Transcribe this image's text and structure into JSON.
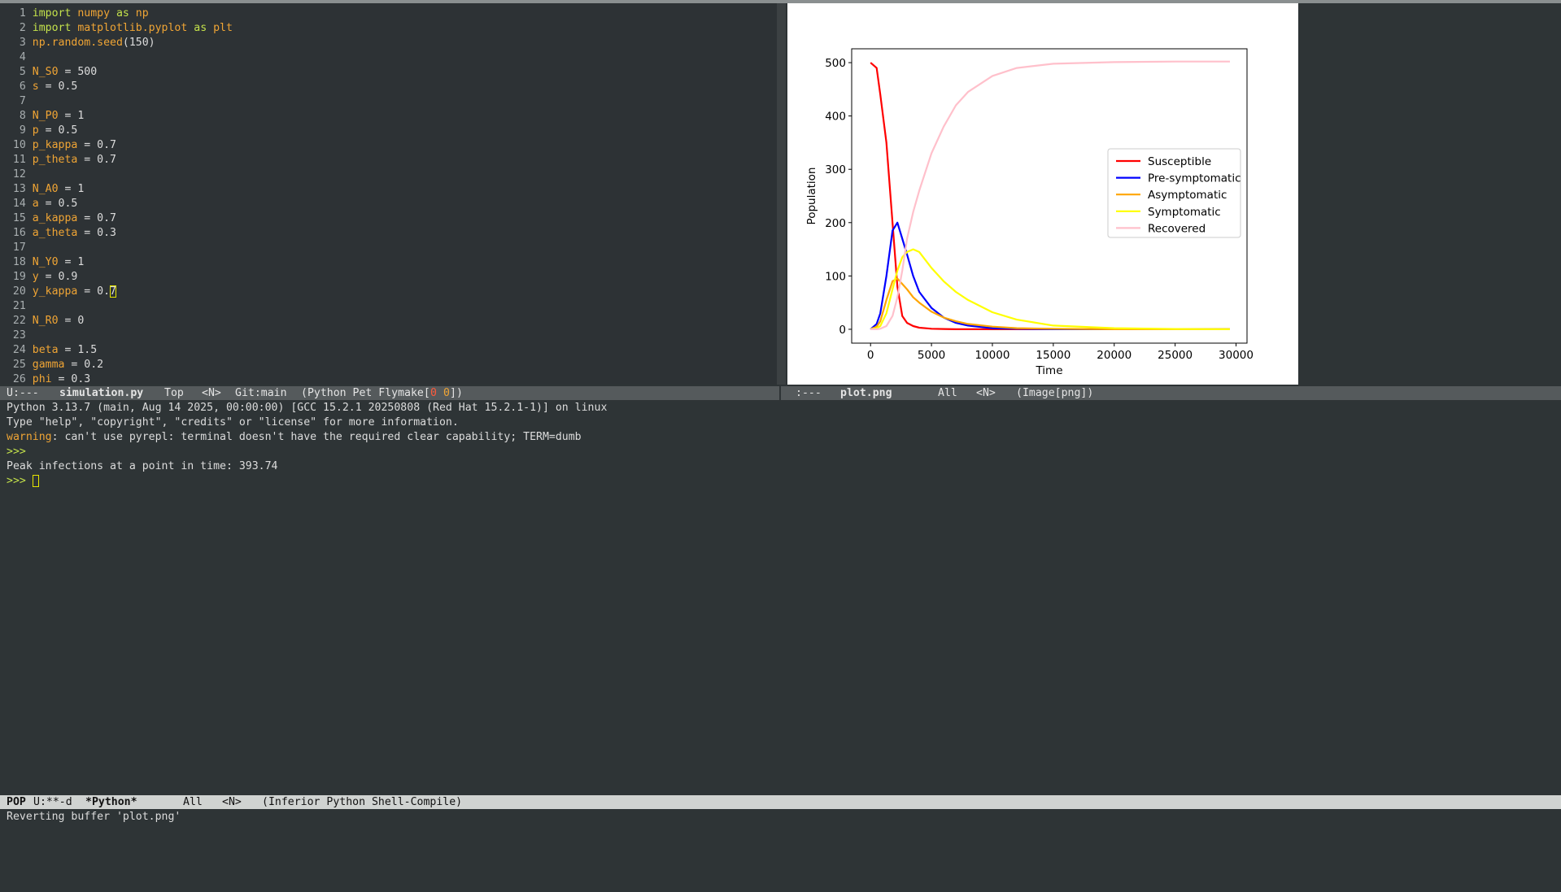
{
  "editor": {
    "lines": [
      {
        "number": "1",
        "tokens": [
          {
            "text": "import",
            "color": "#c4e24b"
          },
          {
            "text": " numpy",
            "color": "#f0a535"
          },
          {
            "text": " as",
            "color": "#c4e24b"
          },
          {
            "text": " np",
            "color": "#f0a535"
          }
        ]
      },
      {
        "number": "2",
        "tokens": [
          {
            "text": "import",
            "color": "#c4e24b"
          },
          {
            "text": " matplotlib.pyplot",
            "color": "#f0a535"
          },
          {
            "text": " as",
            "color": "#c4e24b"
          },
          {
            "text": " plt",
            "color": "#f0a535"
          }
        ]
      },
      {
        "number": "3",
        "tokens": [
          {
            "text": "np.random.",
            "color": "#f0a535"
          },
          {
            "text": "seed",
            "color": "#f0a535"
          },
          {
            "text": "(150)"
          }
        ]
      },
      {
        "number": "4",
        "tokens": []
      },
      {
        "number": "5",
        "tokens": [
          {
            "text": "N_S0",
            "color": "#f0a535"
          },
          {
            "text": " = 500"
          }
        ]
      },
      {
        "number": "6",
        "tokens": [
          {
            "text": "s",
            "color": "#f0a535"
          },
          {
            "text": " = 0.5"
          }
        ]
      },
      {
        "number": "7",
        "tokens": []
      },
      {
        "number": "8",
        "tokens": [
          {
            "text": "N_P0",
            "color": "#f0a535"
          },
          {
            "text": " = 1"
          }
        ]
      },
      {
        "number": "9",
        "tokens": [
          {
            "text": "p",
            "color": "#f0a535"
          },
          {
            "text": " = 0.5"
          }
        ]
      },
      {
        "number": "10",
        "tokens": [
          {
            "text": "p_kappa",
            "color": "#f0a535"
          },
          {
            "text": " = 0.7"
          }
        ]
      },
      {
        "number": "11",
        "tokens": [
          {
            "text": "p_theta",
            "color": "#f0a535"
          },
          {
            "text": " = 0.7"
          }
        ]
      },
      {
        "number": "12",
        "tokens": []
      },
      {
        "number": "13",
        "tokens": [
          {
            "text": "N_A0",
            "color": "#f0a535"
          },
          {
            "text": " = 1"
          }
        ]
      },
      {
        "number": "14",
        "tokens": [
          {
            "text": "a",
            "color": "#f0a535"
          },
          {
            "text": " = 0.5"
          }
        ]
      },
      {
        "number": "15",
        "tokens": [
          {
            "text": "a_kappa",
            "color": "#f0a535"
          },
          {
            "text": " = 0.7"
          }
        ]
      },
      {
        "number": "16",
        "tokens": [
          {
            "text": "a_theta",
            "color": "#f0a535"
          },
          {
            "text": " = 0.3"
          }
        ]
      },
      {
        "number": "17",
        "tokens": []
      },
      {
        "number": "18",
        "tokens": [
          {
            "text": "N_Y0",
            "color": "#f0a535"
          },
          {
            "text": " = 1"
          }
        ]
      },
      {
        "number": "19",
        "tokens": [
          {
            "text": "y",
            "color": "#f0a535"
          },
          {
            "text": " = 0.9"
          }
        ]
      },
      {
        "number": "20",
        "tokens": [
          {
            "text": "y_kappa",
            "color": "#f0a535"
          },
          {
            "text": " = 0."
          },
          {
            "text": "7",
            "cursor": true
          }
        ]
      },
      {
        "number": "21",
        "tokens": []
      },
      {
        "number": "22",
        "tokens": [
          {
            "text": "N_R0",
            "color": "#f0a535"
          },
          {
            "text": " = 0"
          }
        ]
      },
      {
        "number": "23",
        "tokens": []
      },
      {
        "number": "24",
        "tokens": [
          {
            "text": "beta",
            "color": "#f0a535"
          },
          {
            "text": " = 1.5"
          }
        ]
      },
      {
        "number": "25",
        "tokens": [
          {
            "text": "gamma",
            "color": "#f0a535"
          },
          {
            "text": " = 0.2"
          }
        ]
      },
      {
        "number": "26",
        "tokens": [
          {
            "text": "phi",
            "color": "#f0a535"
          },
          {
            "text": " = 0.3"
          }
        ]
      }
    ]
  },
  "left_modeline": {
    "status": "U:---",
    "buffer": "simulation.py",
    "position": "Top",
    "state": "<N>",
    "vc": "Git:main",
    "mode_open": "(Python Pet Flymake[",
    "errors": "0",
    "warnings": "0",
    "mode_close": "])"
  },
  "right_modeline": {
    "status": ":---",
    "buffer": "plot.png",
    "position": "All",
    "state": "<N>",
    "mode": "(Image[png])"
  },
  "shell": {
    "lines": [
      [
        {
          "text": "Python 3.13.7 (main, Aug 14 2025, 00:00:00) [GCC 15.2.1 20250808 (Red Hat 15.2.1-1)] on linux"
        }
      ],
      [
        {
          "text": "Type \"help\", \"copyright\", \"credits\" or \"license\" for more information."
        }
      ],
      [
        {
          "text": "warning",
          "color": "#f0a535"
        },
        {
          "text": ": can't use pyrepl: terminal doesn't have the required clear capability; TERM=dumb"
        }
      ],
      [
        {
          "text": ">>>",
          "color": "#c4e24b"
        }
      ],
      [
        {
          "text": "Peak infections at a point in time: 393.74"
        }
      ],
      [
        {
          "text": ">>>",
          "color": "#c4e24b"
        },
        {
          "text": " "
        },
        {
          "text": " ",
          "cursor": true
        }
      ]
    ]
  },
  "bottom_modeline": {
    "tag": "POP",
    "status": "U:**-d",
    "buffer": "*Python*",
    "position": "All",
    "state": "<N>",
    "mode": "(Inferior Python Shell-Compile)"
  },
  "echo": "Reverting buffer 'plot.png'",
  "chart_data": {
    "type": "line",
    "xlabel": "Time",
    "ylabel": "Population",
    "x": [
      0,
      500,
      800,
      1300,
      1800,
      2200,
      2600,
      3000,
      3500,
      4000,
      5000,
      6000,
      7000,
      8000,
      10000,
      12000,
      15000,
      20000,
      25000,
      29500
    ],
    "series": [
      {
        "name": "Susceptible",
        "color": "#ff0000",
        "values": [
          500,
          490,
          440,
          350,
          200,
          80,
          25,
          12,
          6,
          3,
          1,
          0.5,
          0,
          0,
          0,
          0,
          0,
          0,
          0,
          0
        ]
      },
      {
        "name": "Pre-symptomatic",
        "color": "#0000ff",
        "values": [
          0,
          10,
          30,
          100,
          185,
          200,
          170,
          140,
          100,
          70,
          40,
          22,
          12,
          7,
          2,
          1,
          0,
          0,
          0,
          0
        ]
      },
      {
        "name": "Asymptomatic",
        "color": "#ffa500",
        "values": [
          0,
          5,
          15,
          55,
          90,
          95,
          85,
          75,
          60,
          50,
          33,
          22,
          15,
          10,
          5,
          2,
          1,
          0,
          0,
          0
        ]
      },
      {
        "name": "Symptomatic",
        "color": "#ffff00",
        "values": [
          0,
          2,
          6,
          30,
          75,
          110,
          135,
          145,
          150,
          145,
          115,
          90,
          70,
          55,
          32,
          18,
          7,
          2,
          0.5,
          0
        ]
      },
      {
        "name": "Recovered",
        "color": "#ffc0cb",
        "values": [
          0,
          0,
          1,
          6,
          25,
          60,
          110,
          170,
          220,
          260,
          330,
          380,
          420,
          445,
          475,
          490,
          498,
          501,
          502,
          502
        ]
      }
    ],
    "xlim": [
      -1550,
      30900
    ],
    "ylim": [
      -26,
      526
    ],
    "xticks": [
      0,
      5000,
      10000,
      15000,
      20000,
      25000,
      30000
    ],
    "yticks": [
      0,
      100,
      200,
      300,
      400,
      500
    ],
    "legend": "right"
  }
}
